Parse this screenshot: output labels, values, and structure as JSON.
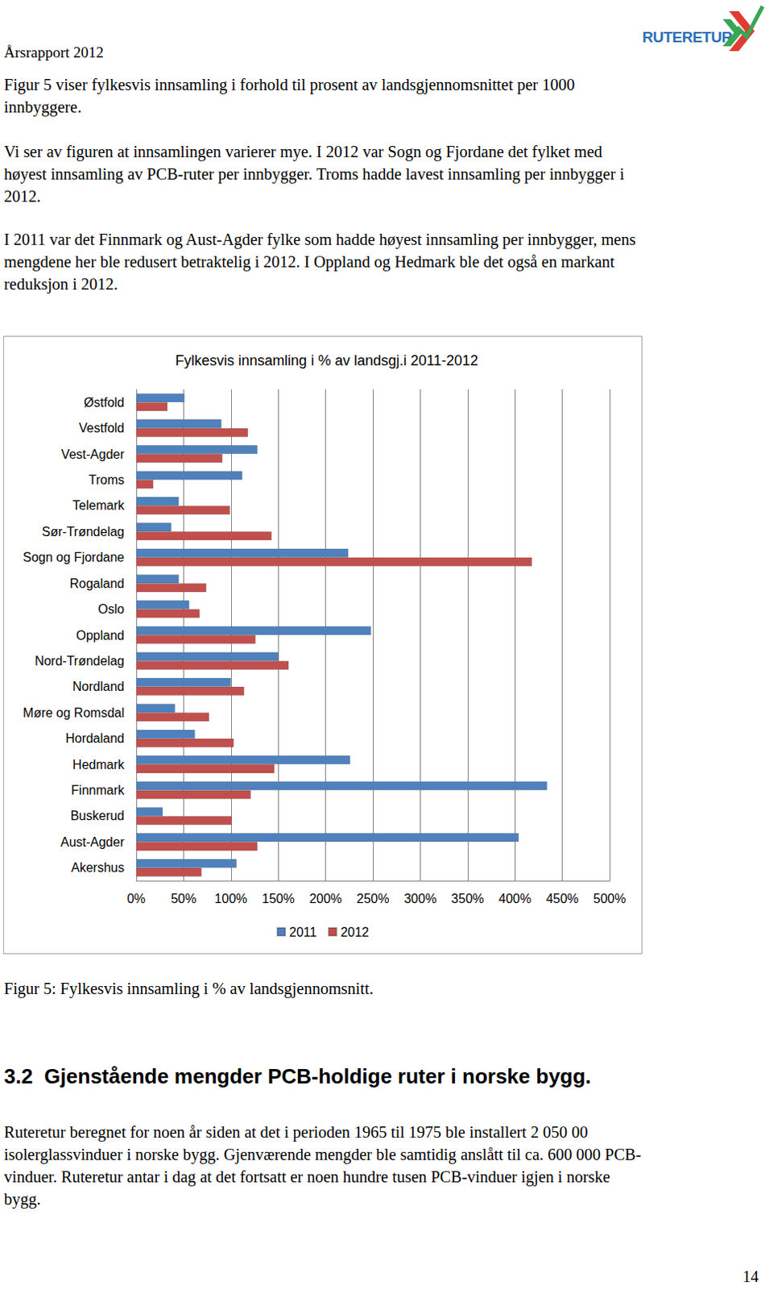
{
  "header": {
    "left": "Årsrapport 2012",
    "logo": "RUTERETUR"
  },
  "paragraphs": [
    [
      "Figur 5 viser fylkesvis innsamling i forhold til prosent av landsgjennomsnittet per 1000",
      "innbyggere."
    ],
    [
      "Vi ser av figuren at innsamlingen varierer mye. I 2012 var Sogn og Fjordane det fylket med",
      "høyest innsamling av PCB-ruter per innbygger. Troms hadde lavest innsamling per innbygger i",
      "2012."
    ],
    [
      "I 2011 var det Finnmark og Aust-Agder fylke som hadde høyest innsamling per innbygger, mens",
      "mengdene her ble redusert betraktelig i 2012. I Oppland og Hedmark ble det også en markant",
      "reduksjon i 2012."
    ]
  ],
  "chart_data": {
    "type": "bar",
    "orientation": "horizontal",
    "title": "Fylkesvis innsamling i % av landsgj.i 2011-2012",
    "categories": [
      "Østfold",
      "Vestfold",
      "Vest-Agder",
      "Troms",
      "Telemark",
      "Sør-Trøndelag",
      "Sogn og Fjordane",
      "Rogaland",
      "Oslo",
      "Oppland",
      "Nord-Trøndelag",
      "Nordland",
      "Møre og Romsdal",
      "Hordaland",
      "Hedmark",
      "Finnmark",
      "Buskerud",
      "Aust-Agder",
      "Akershus"
    ],
    "series": [
      {
        "name": "2011",
        "color": "#4f81bd",
        "values": [
          51,
          90,
          128,
          112,
          45,
          37,
          224,
          45,
          56,
          248,
          150,
          100,
          41,
          62,
          226,
          434,
          28,
          404,
          106
        ]
      },
      {
        "name": "2012",
        "color": "#c0504d",
        "values": [
          33,
          118,
          91,
          18,
          99,
          143,
          418,
          74,
          67,
          126,
          161,
          114,
          77,
          103,
          146,
          121,
          101,
          128,
          69
        ]
      }
    ],
    "xlim": [
      0,
      500
    ],
    "xticks": [
      {
        "value": 0,
        "label": "0%"
      },
      {
        "value": 50,
        "label": "50%"
      },
      {
        "value": 100,
        "label": "100%"
      },
      {
        "value": 150,
        "label": "150%"
      },
      {
        "value": 200,
        "label": "200%"
      },
      {
        "value": 250,
        "label": "250%"
      },
      {
        "value": 300,
        "label": "300%"
      },
      {
        "value": 350,
        "label": "350%"
      },
      {
        "value": 400,
        "label": "400%"
      },
      {
        "value": 450,
        "label": "450%"
      },
      {
        "value": 500,
        "label": "500%"
      }
    ],
    "grid": true,
    "legend": "bottom"
  },
  "caption": "Figur 5: Fylkesvis innsamling i % av landsgjennomsnitt.",
  "section": {
    "heading": "3.2  Gjenstående mengder PCB-holdige ruter i norske bygg.",
    "paragraph": [
      "Ruteretur beregnet for noen år siden at det i perioden 1965 til 1975 ble installert 2 050 00",
      "isolerglassvinduer i norske bygg. Gjenværende mengder ble samtidig anslått til ca. 600 000 PCB-",
      "vinduer. Ruteretur antar i dag at det fortsatt er noen hundre tusen PCB-vinduer igjen i norske",
      "bygg."
    ]
  },
  "page_number": "14"
}
